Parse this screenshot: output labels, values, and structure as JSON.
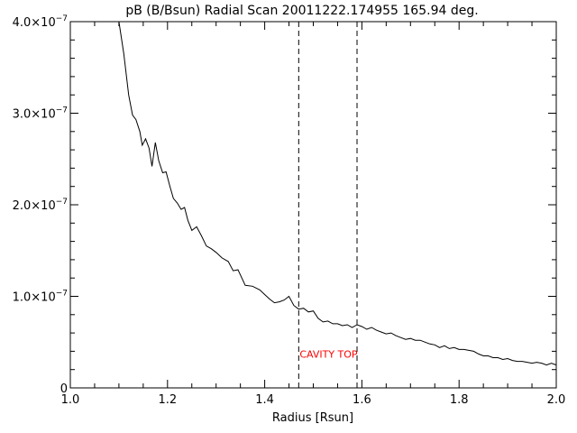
{
  "chart_data": {
    "type": "line",
    "title": "pB (B/Bsun) Radial Scan 20011222.174955 165.94 deg.",
    "xlabel": "Radius [Rsun]",
    "ylabel": "",
    "xlim": [
      1.0,
      2.0
    ],
    "ylim": [
      0,
      4e-07
    ],
    "grid": false,
    "x_ticks": [
      1.0,
      1.2,
      1.4,
      1.6,
      1.8,
      2.0
    ],
    "x_tick_labels": [
      "1.0",
      "1.2",
      "1.4",
      "1.6",
      "1.8",
      "2.0"
    ],
    "y_ticks": [
      {
        "value": 0,
        "label": "0",
        "mantissa": "0",
        "exponent": ""
      },
      {
        "value": 1e-07,
        "label": "1.0×10⁻⁷",
        "mantissa": "1.0×10",
        "exponent": "−7"
      },
      {
        "value": 2e-07,
        "label": "2.0×10⁻⁷",
        "mantissa": "2.0×10",
        "exponent": "−7"
      },
      {
        "value": 3e-07,
        "label": "3.0×10⁻⁷",
        "mantissa": "3.0×10",
        "exponent": "−7"
      },
      {
        "value": 4e-07,
        "label": "4.0×10⁻⁷",
        "mantissa": "4.0×10",
        "exponent": "−7"
      }
    ],
    "series": [
      {
        "color": "#000000",
        "x": [
          1.1,
          1.11,
          1.12,
          1.128,
          1.135,
          1.143,
          1.148,
          1.155,
          1.162,
          1.168,
          1.175,
          1.182,
          1.19,
          1.197,
          1.205,
          1.212,
          1.22,
          1.228,
          1.235,
          1.242,
          1.25,
          1.26,
          1.27,
          1.28,
          1.29,
          1.3,
          1.312,
          1.325,
          1.335,
          1.345,
          1.36,
          1.375,
          1.39,
          1.4,
          1.41,
          1.42,
          1.43,
          1.44,
          1.45,
          1.46,
          1.47,
          1.48,
          1.49,
          1.5,
          1.51,
          1.52,
          1.53,
          1.54,
          1.55,
          1.56,
          1.57,
          1.58,
          1.59,
          1.6,
          1.61,
          1.62,
          1.63,
          1.64,
          1.65,
          1.66,
          1.67,
          1.68,
          1.69,
          1.7,
          1.71,
          1.72,
          1.73,
          1.74,
          1.75,
          1.76,
          1.77,
          1.78,
          1.79,
          1.8,
          1.81,
          1.82,
          1.83,
          1.84,
          1.85,
          1.86,
          1.87,
          1.88,
          1.89,
          1.9,
          1.91,
          1.92,
          1.93,
          1.94,
          1.95,
          1.96,
          1.97,
          1.98,
          1.99,
          2.0
        ],
        "y": [
          4e-07,
          3.65e-07,
          3.2e-07,
          2.98e-07,
          2.93e-07,
          2.8e-07,
          2.65e-07,
          2.72e-07,
          2.62e-07,
          2.42e-07,
          2.68e-07,
          2.48e-07,
          2.35e-07,
          2.36e-07,
          2.2e-07,
          2.07e-07,
          2.02e-07,
          1.95e-07,
          1.97e-07,
          1.83e-07,
          1.72e-07,
          1.76e-07,
          1.66e-07,
          1.55e-07,
          1.52e-07,
          1.48e-07,
          1.42e-07,
          1.38e-07,
          1.28e-07,
          1.29e-07,
          1.12e-07,
          1.11e-07,
          1.07e-07,
          1.02e-07,
          9.7e-08,
          9.3e-08,
          9.4e-08,
          9.6e-08,
          1e-07,
          9e-08,
          8.6e-08,
          8.7e-08,
          8.3e-08,
          8.4e-08,
          7.6e-08,
          7.2e-08,
          7.3e-08,
          7e-08,
          7e-08,
          6.8e-08,
          6.9e-08,
          6.6e-08,
          6.9e-08,
          6.7e-08,
          6.4e-08,
          6.6e-08,
          6.3e-08,
          6.1e-08,
          5.9e-08,
          6e-08,
          5.7e-08,
          5.5e-08,
          5.3e-08,
          5.4e-08,
          5.2e-08,
          5.2e-08,
          5e-08,
          4.8e-08,
          4.7e-08,
          4.4e-08,
          4.6e-08,
          4.3e-08,
          4.4e-08,
          4.2e-08,
          4.2e-08,
          4.1e-08,
          4e-08,
          3.7e-08,
          3.5e-08,
          3.5e-08,
          3.3e-08,
          3.3e-08,
          3.1e-08,
          3.2e-08,
          3e-08,
          2.9e-08,
          2.9e-08,
          2.8e-08,
          2.7e-08,
          2.8e-08,
          2.7e-08,
          2.5e-08,
          2.7e-08,
          2.5e-08
        ]
      }
    ],
    "vlines": [
      {
        "x": 1.47,
        "style": "dashed",
        "color": "#000000"
      },
      {
        "x": 1.59,
        "style": "dashed",
        "color": "#000000"
      }
    ],
    "annotations": [
      {
        "text": "CAVITY TOP",
        "x": 1.47,
        "y": 3.3e-08,
        "color": "#ff0000"
      }
    ]
  }
}
